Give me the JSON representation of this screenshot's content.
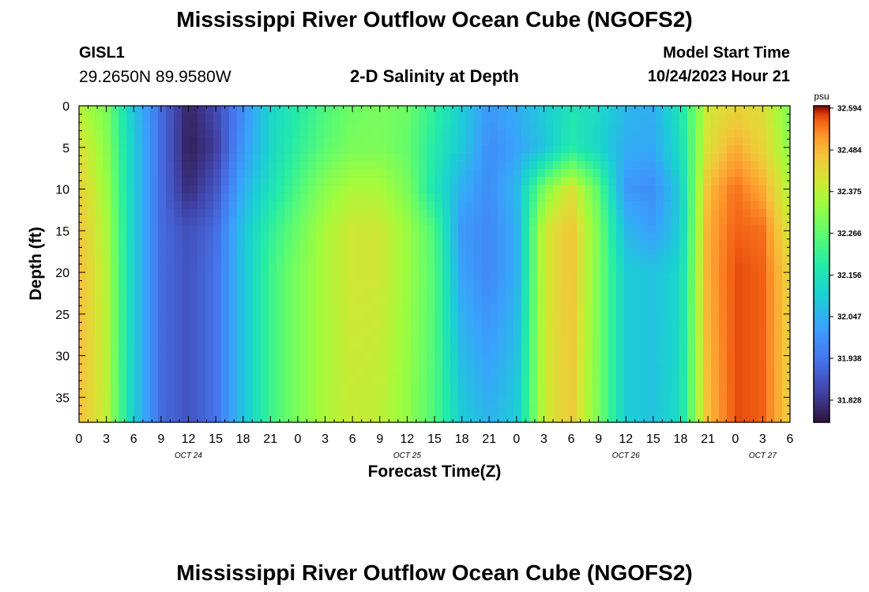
{
  "header": {
    "title": "Mississippi River Outflow Ocean Cube (NGOFS2)",
    "station_id": "GISL1",
    "station_coords": "29.2650N  89.9580W",
    "subtitle": "2-D Salinity at Depth",
    "model_start_label": "Model Start Time",
    "model_start_value": "10/24/2023 Hour 21"
  },
  "footer": {
    "title": "Mississippi River Outflow Ocean Cube (NGOFS2)"
  },
  "chart_data": {
    "type": "heatmap",
    "title": "2-D Salinity at Depth",
    "xlabel": "Forecast Time(Z)",
    "ylabel": "Depth (ft)",
    "x_tick_labels": [
      "0",
      "3",
      "6",
      "9",
      "12",
      "15",
      "18",
      "21",
      "0",
      "3",
      "6",
      "9",
      "12",
      "15",
      "18",
      "21",
      "0",
      "3",
      "6",
      "9",
      "12",
      "15",
      "18",
      "21",
      "0",
      "3",
      "6"
    ],
    "date_labels": [
      {
        "label": "OCT 24",
        "tick_index": 4
      },
      {
        "label": "OCT 25",
        "tick_index": 12
      },
      {
        "label": "OCT 26",
        "tick_index": 20
      },
      {
        "label": "OCT 27",
        "tick_index": 25
      }
    ],
    "xlim_hours": [
      0,
      78
    ],
    "y_ticks": [
      0,
      5,
      10,
      15,
      20,
      25,
      30,
      35
    ],
    "ylim": [
      0,
      38
    ],
    "colorbar": {
      "unit": "psu",
      "tick_labels": [
        "32.594",
        "32.484",
        "32.375",
        "32.266",
        "32.156",
        "32.047",
        "31.938",
        "31.828"
      ],
      "vmin": 31.77,
      "vmax": 32.6
    },
    "columns_hours": [
      0,
      3,
      6,
      9,
      12,
      15,
      18,
      21,
      24,
      27,
      30,
      33,
      36,
      39,
      42,
      45,
      48,
      51,
      54,
      57,
      60,
      63,
      66,
      69,
      72,
      75,
      78
    ],
    "depth_levels_ft": [
      0,
      5,
      10,
      15,
      20,
      38
    ],
    "salinity_psu": [
      [
        32.37,
        32.42,
        32.45,
        32.47,
        32.48,
        32.48
      ],
      [
        32.3,
        32.32,
        32.34,
        32.36,
        32.37,
        32.38
      ],
      [
        32.08,
        32.1,
        32.1,
        32.1,
        32.1,
        32.1
      ],
      [
        31.92,
        31.92,
        31.92,
        31.92,
        31.92,
        31.92
      ],
      [
        31.8,
        31.79,
        31.81,
        31.87,
        31.88,
        31.88
      ],
      [
        31.86,
        31.84,
        31.88,
        31.92,
        31.93,
        31.93
      ],
      [
        31.98,
        32.0,
        32.04,
        32.08,
        32.08,
        32.08
      ],
      [
        32.12,
        32.12,
        32.15,
        32.2,
        32.22,
        32.22
      ],
      [
        32.18,
        32.2,
        32.24,
        32.28,
        32.3,
        32.3
      ],
      [
        32.24,
        32.26,
        32.32,
        32.36,
        32.36,
        32.36
      ],
      [
        32.28,
        32.3,
        32.36,
        32.4,
        32.4,
        32.39
      ],
      [
        32.3,
        32.3,
        32.36,
        32.4,
        32.4,
        32.38
      ],
      [
        32.28,
        32.27,
        32.3,
        32.34,
        32.34,
        32.33
      ],
      [
        32.2,
        32.18,
        32.16,
        32.24,
        32.25,
        32.24
      ],
      [
        32.1,
        32.09,
        32.04,
        32.0,
        32.02,
        32.1
      ],
      [
        32.0,
        31.98,
        31.98,
        31.97,
        31.97,
        32.05
      ],
      [
        32.04,
        32.02,
        32.06,
        32.04,
        32.04,
        32.1
      ],
      [
        32.1,
        32.08,
        32.3,
        32.4,
        32.4,
        32.39
      ],
      [
        32.16,
        32.18,
        32.42,
        32.47,
        32.47,
        32.46
      ],
      [
        32.13,
        32.12,
        32.26,
        32.3,
        32.3,
        32.3
      ],
      [
        32.06,
        32.04,
        32.0,
        32.06,
        32.1,
        32.1
      ],
      [
        32.04,
        32.03,
        31.98,
        32.01,
        32.08,
        32.08
      ],
      [
        32.16,
        32.14,
        32.1,
        32.1,
        32.12,
        32.14
      ],
      [
        32.4,
        32.42,
        32.48,
        32.5,
        32.5,
        32.48
      ],
      [
        32.44,
        32.5,
        32.55,
        32.56,
        32.57,
        32.57
      ],
      [
        32.42,
        32.44,
        32.5,
        32.55,
        32.56,
        32.56
      ],
      [
        32.3,
        32.32,
        32.36,
        32.4,
        32.44,
        32.45
      ]
    ]
  }
}
